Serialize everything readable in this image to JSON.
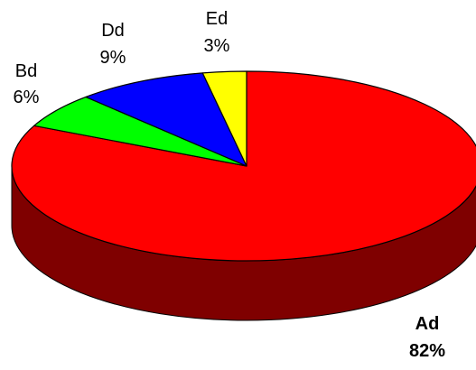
{
  "chart_data": {
    "type": "pie",
    "style": "3d",
    "title": "",
    "slices": [
      {
        "label": "Ad",
        "value": 82,
        "display": "82%",
        "color": "#ff0000",
        "side_color": "#7f0000",
        "bold": true
      },
      {
        "label": "Bd",
        "value": 6,
        "display": "6%",
        "color": "#00ff00",
        "side_color": "#007f00",
        "bold": false
      },
      {
        "label": "Dd",
        "value": 9,
        "display": "9%",
        "color": "#0000ff",
        "side_color": "#00007f",
        "bold": false
      },
      {
        "label": "Ed",
        "value": 3,
        "display": "3%",
        "color": "#ffff00",
        "side_color": "#7f7f00",
        "bold": false
      }
    ],
    "legend": "none"
  }
}
